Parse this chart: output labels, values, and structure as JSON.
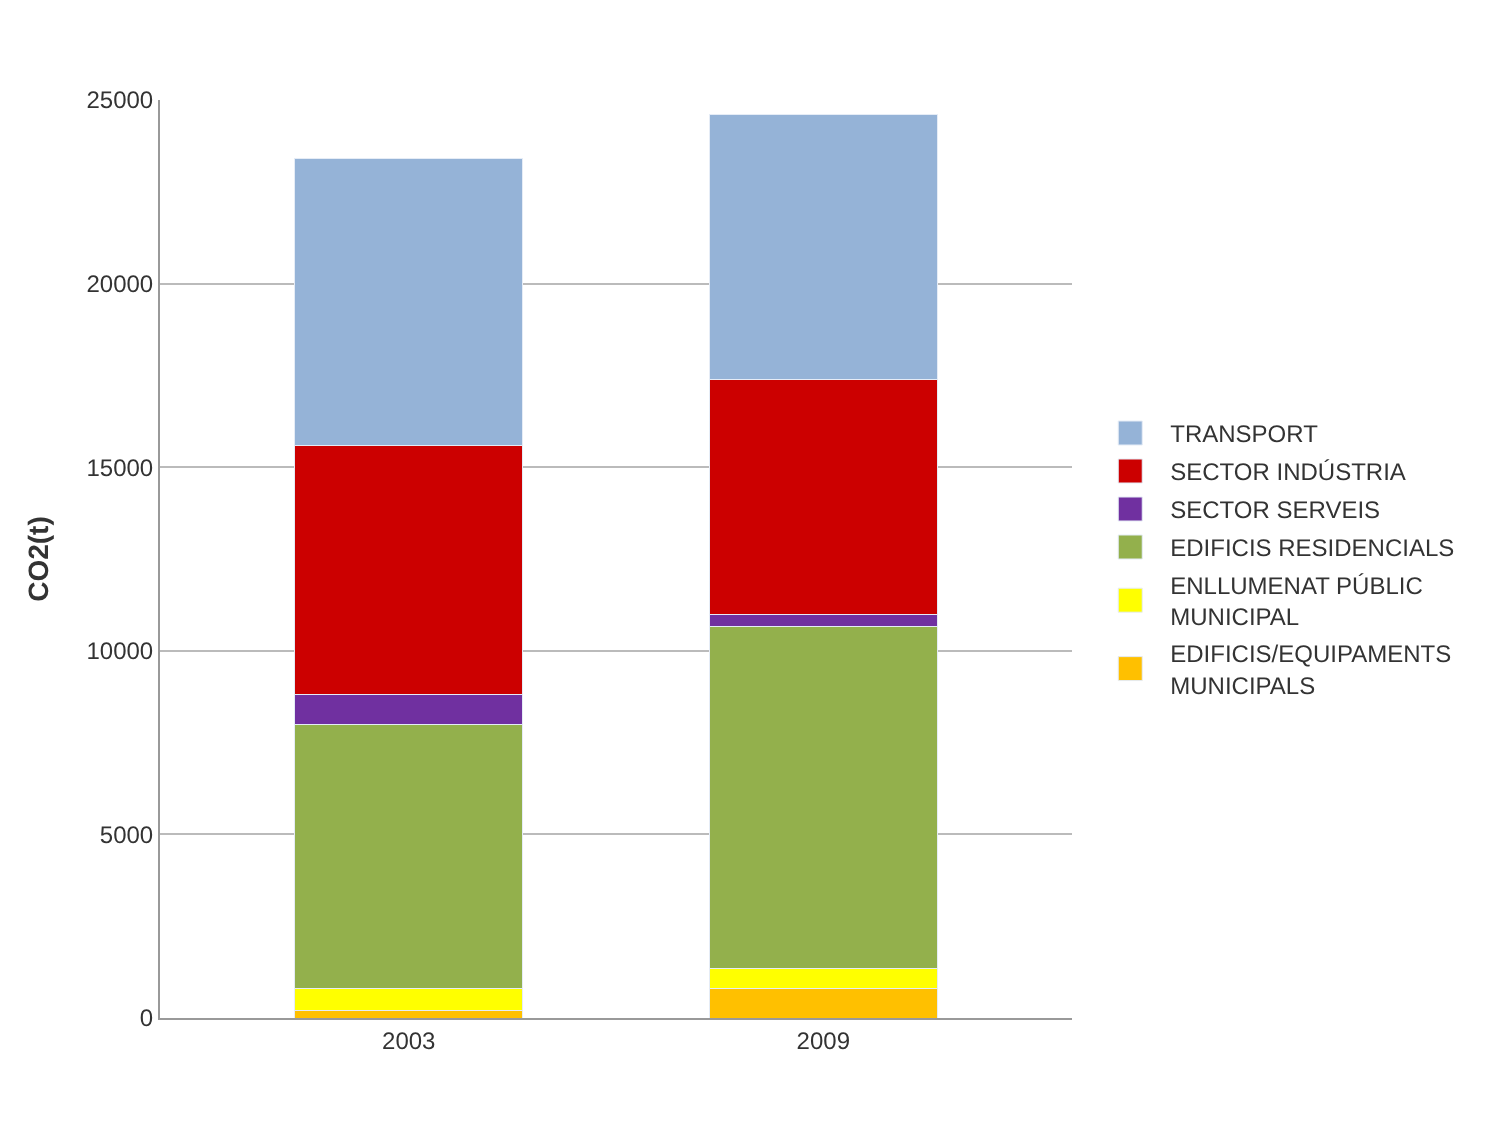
{
  "chart_data": {
    "type": "bar",
    "stacked": true,
    "ylabel": "CO2(t)",
    "categories": [
      "2003",
      "2009"
    ],
    "series": [
      {
        "name": "EDIFICIS/EQUIPAMENTS MUNICIPALS",
        "color": "#ffc000",
        "values": [
          200,
          800
        ]
      },
      {
        "name": "ENLLUMENAT PÚBLIC MUNICIPAL",
        "color": "#ffff00",
        "values": [
          600,
          550
        ]
      },
      {
        "name": "EDIFICIS RESIDENCIALS",
        "color": "#93b04c",
        "values": [
          7200,
          9300
        ]
      },
      {
        "name": "SECTOR SERVEIS",
        "color": "#7030a0",
        "values": [
          800,
          350
        ]
      },
      {
        "name": "SECTOR INDÚSTRIA",
        "color": "#cc0000",
        "values": [
          6800,
          6400
        ]
      },
      {
        "name": "TRANSPORT",
        "color": "#95b3d7",
        "values": [
          7800,
          7200
        ]
      }
    ],
    "ylim": [
      0,
      25000
    ],
    "yticks": [
      0,
      5000,
      10000,
      15000,
      20000,
      25000
    ],
    "grid": "y",
    "legend": "right"
  }
}
